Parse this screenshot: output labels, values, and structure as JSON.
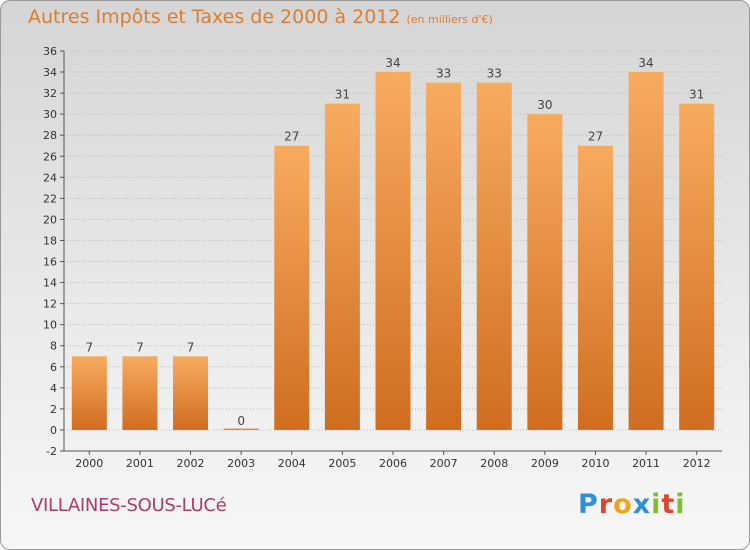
{
  "title": {
    "main": "Autres Impôts et Taxes de 2000 à 2012",
    "unit": "(en milliers d'€)"
  },
  "commune": "VILLAINES-SOUS-LUCé",
  "brand": {
    "letters": [
      "P",
      "r",
      "o",
      "x",
      "i",
      "t",
      "i"
    ],
    "colors": [
      "#2f8fd8",
      "#e0462e",
      "#f2a21b",
      "#2f8fd8",
      "#7fbf2a",
      "#e0462e",
      "#7fbf2a"
    ]
  },
  "colors": {
    "bar_light": "#f7ab5f",
    "bar_dark": "#d06d1f",
    "title": "#e07c2b",
    "commune": "#b03a6a",
    "grid": "#b9b9b9"
  },
  "chart_data": {
    "type": "bar",
    "categories": [
      "2000",
      "2001",
      "2002",
      "2003",
      "2004",
      "2005",
      "2006",
      "2007",
      "2008",
      "2009",
      "2010",
      "2011",
      "2012"
    ],
    "values": [
      7,
      7,
      7,
      0,
      27,
      31,
      34,
      33,
      33,
      30,
      27,
      34,
      31
    ],
    "data_labels": [
      "7",
      "7",
      "7",
      "0",
      "27",
      "31",
      "34",
      "33",
      "33",
      "30",
      "27",
      "34",
      "31"
    ],
    "y_ticks": [
      "-2",
      "0",
      "2",
      "4",
      "6",
      "8",
      "10",
      "12",
      "14",
      "16",
      "18",
      "20",
      "22",
      "24",
      "26",
      "28",
      "30",
      "32",
      "34",
      "36"
    ],
    "ylim": [
      -2,
      36
    ],
    "xlabel": "",
    "ylabel": "",
    "grid": true,
    "legend": "none"
  }
}
